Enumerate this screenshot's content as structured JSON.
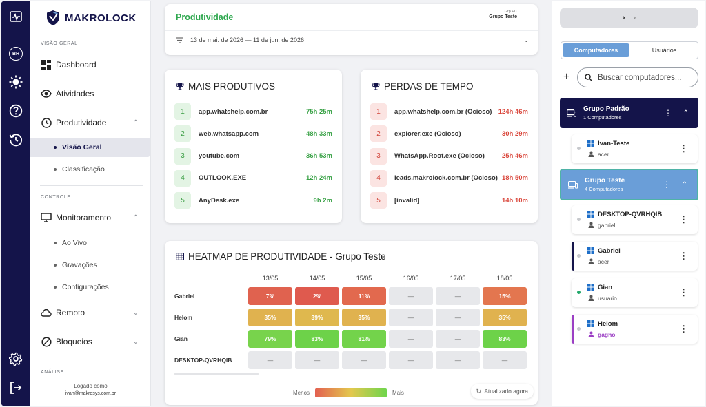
{
  "rail": {
    "items": [
      {
        "icon": "activity-icon"
      },
      {
        "icon": "language-icon",
        "label": "BR"
      },
      {
        "icon": "sun-icon"
      },
      {
        "icon": "help-icon"
      },
      {
        "icon": "history-icon"
      },
      {
        "icon": "settings-icon"
      },
      {
        "icon": "logout-icon"
      }
    ]
  },
  "sidebar": {
    "brand": "MAKROLOCK",
    "section_overview": "VISÃO GERAL",
    "dashboard": "Dashboard",
    "activities": "Atividades",
    "productivity": "Produtividade",
    "overview": "Visão Geral",
    "classification": "Classificação",
    "section_control": "CONTROLE",
    "monitoring": "Monitoramento",
    "live": "Ao Vivo",
    "recordings": "Gravações",
    "settings": "Configurações",
    "remote": "Remoto",
    "blocks": "Bloqueios",
    "section_analysis": "ANÁLISE",
    "logged_as": "Logado como",
    "user_email": "ivan@makrosys.com.br"
  },
  "header": {
    "title": "Produtividade",
    "group_label": "Grp PC",
    "group_name": "Grupo Teste",
    "date_range": "13 de mai. de 2026 — 11 de jun. de 2026"
  },
  "most_productive": {
    "title": "MAIS PRODUTIVOS",
    "items": [
      {
        "rank": "1",
        "name": "app.whatshelp.com.br",
        "time": "75h 25m"
      },
      {
        "rank": "2",
        "name": "web.whatsapp.com",
        "time": "48h 33m"
      },
      {
        "rank": "3",
        "name": "youtube.com",
        "time": "36h 53m"
      },
      {
        "rank": "4",
        "name": "OUTLOOK.EXE",
        "time": "12h 24m"
      },
      {
        "rank": "5",
        "name": "AnyDesk.exe",
        "time": "9h 2m"
      }
    ]
  },
  "time_loss": {
    "title": "PERDAS DE TEMPO",
    "items": [
      {
        "rank": "1",
        "name": "app.whatshelp.com.br (Ocioso)",
        "time": "124h 46m"
      },
      {
        "rank": "2",
        "name": "explorer.exe (Ocioso)",
        "time": "30h 29m"
      },
      {
        "rank": "3",
        "name": "WhatsApp.Root.exe (Ocioso)",
        "time": "25h 46m"
      },
      {
        "rank": "4",
        "name": "leads.makrolock.com.br (Ocioso)",
        "time": "18h 50m"
      },
      {
        "rank": "5",
        "name": "[invalid]",
        "time": "14h 10m"
      }
    ]
  },
  "heatmap": {
    "title": "HEATMAP DE PRODUTIVIDADE - Grupo Teste",
    "dates": [
      "13/05",
      "14/05",
      "15/05",
      "16/05",
      "17/05",
      "18/05"
    ],
    "rows": [
      {
        "name": "Gabriel",
        "cells": [
          {
            "text": "7%",
            "color": "#e0624f"
          },
          {
            "text": "2%",
            "color": "#df5a4e"
          },
          {
            "text": "11%",
            "color": "#e2694e"
          },
          {
            "text": "—",
            "color": ""
          },
          {
            "text": "—",
            "color": ""
          },
          {
            "text": "15%",
            "color": "#e3764f"
          }
        ]
      },
      {
        "name": "Helom",
        "cells": [
          {
            "text": "35%",
            "color": "#e0b24f"
          },
          {
            "text": "39%",
            "color": "#dfb84e"
          },
          {
            "text": "35%",
            "color": "#e0b24f"
          },
          {
            "text": "—",
            "color": ""
          },
          {
            "text": "—",
            "color": ""
          },
          {
            "text": "35%",
            "color": "#e0b24f"
          }
        ]
      },
      {
        "name": "Gian",
        "cells": [
          {
            "text": "79%",
            "color": "#78d34c"
          },
          {
            "text": "83%",
            "color": "#6dd249"
          },
          {
            "text": "81%",
            "color": "#73d34b"
          },
          {
            "text": "—",
            "color": ""
          },
          {
            "text": "—",
            "color": ""
          },
          {
            "text": "83%",
            "color": "#6dd249"
          }
        ]
      },
      {
        "name": "DESKTOP-QVRHQIB",
        "cells": [
          {
            "text": "—",
            "color": ""
          },
          {
            "text": "—",
            "color": ""
          },
          {
            "text": "—",
            "color": ""
          },
          {
            "text": "—",
            "color": ""
          },
          {
            "text": "—",
            "color": ""
          },
          {
            "text": "—",
            "color": ""
          }
        ]
      }
    ],
    "legend_low": "Menos",
    "legend_high": "Mais",
    "updated": "Atualizado agora"
  },
  "right_panel": {
    "tab_computers": "Computadores",
    "tab_users": "Usuários",
    "search_placeholder": "Buscar computadores...",
    "groups": [
      {
        "name": "Grupo Padrão",
        "count": "1 Computadores",
        "computers": [
          {
            "name": "Ivan-Teste",
            "user": "acer",
            "online": false,
            "accent": ""
          }
        ]
      },
      {
        "name": "Grupo Teste",
        "count": "4 Computadores",
        "computers": [
          {
            "name": "DESKTOP-QVRHQIB",
            "user": "gabriel",
            "online": false,
            "accent": ""
          },
          {
            "name": "Gabriel",
            "user": "acer",
            "online": false,
            "accent": "#14144a"
          },
          {
            "name": "Gian",
            "user": "usuario",
            "online": true,
            "accent": ""
          },
          {
            "name": "Helom",
            "user": "gagho",
            "online": false,
            "accent": "#9b3fc4"
          }
        ]
      }
    ]
  },
  "colors": {
    "navy": "#14144a",
    "green": "#2fa84f",
    "red": "#d9453a",
    "group_selected": "#6a9ed8",
    "purple_user": "#9b3fc4"
  }
}
